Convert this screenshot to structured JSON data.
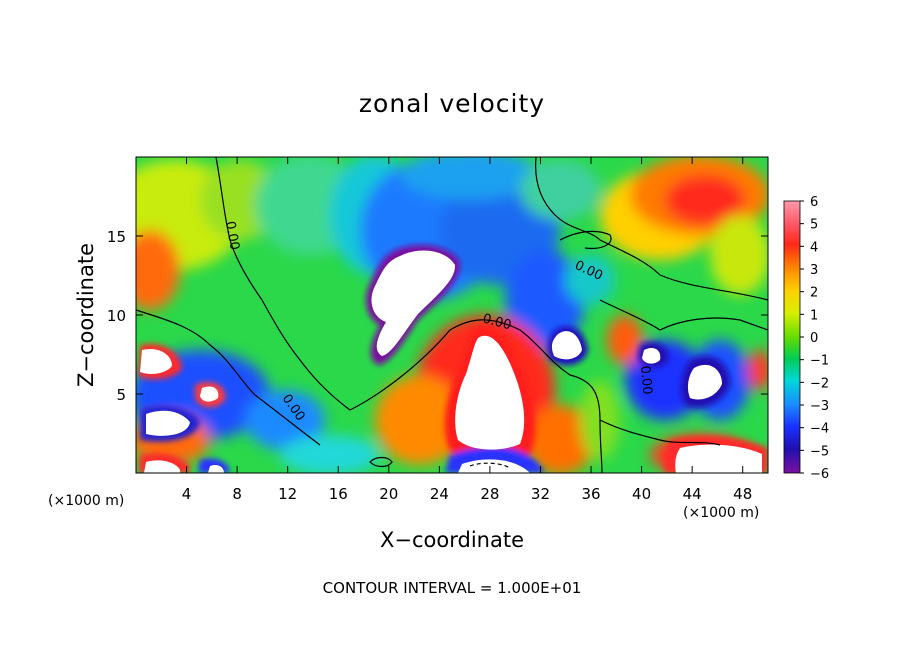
{
  "chart_data": {
    "type": "heatmap",
    "title": "zonal velocity",
    "xlabel": "X−coordinate",
    "ylabel": "Z−coordinate",
    "x_unit_left": "(×1000 m)",
    "x_unit_right": "(×1000 m)",
    "xlim": [
      0,
      50
    ],
    "ylim": [
      0,
      20
    ],
    "xticks": [
      "4",
      "8",
      "12",
      "16",
      "20",
      "24",
      "28",
      "32",
      "36",
      "40",
      "44",
      "48"
    ],
    "xtick_values": [
      4,
      8,
      12,
      16,
      20,
      24,
      28,
      32,
      36,
      40,
      44,
      48
    ],
    "yticks": [
      "5",
      "10",
      "15"
    ],
    "ytick_values": [
      5,
      10,
      15
    ],
    "colorbar": {
      "labels": [
        "6",
        "5",
        "4",
        "3",
        "2",
        "1",
        "0",
        "−1",
        "−2",
        "−3",
        "−4",
        "−5",
        "−6"
      ],
      "values": [
        6,
        5,
        4,
        3,
        2,
        1,
        0,
        -1,
        -2,
        -3,
        -4,
        -5,
        -6
      ],
      "colors": [
        "#ff9aa8",
        "#ff5a6a",
        "#ff2a1a",
        "#ff8a00",
        "#ffd000",
        "#d8ef00",
        "#66dd00",
        "#00cc55",
        "#00d8d8",
        "#1a8aff",
        "#1a30ff",
        "#2010b0",
        "#7a10a0"
      ]
    },
    "contour_labels": [
      "0.00",
      "0.00",
      "0.00",
      "0.00",
      "0.00"
    ],
    "contour_interval_text": "CONTOUR INTERVAL = 1.000E+01"
  }
}
